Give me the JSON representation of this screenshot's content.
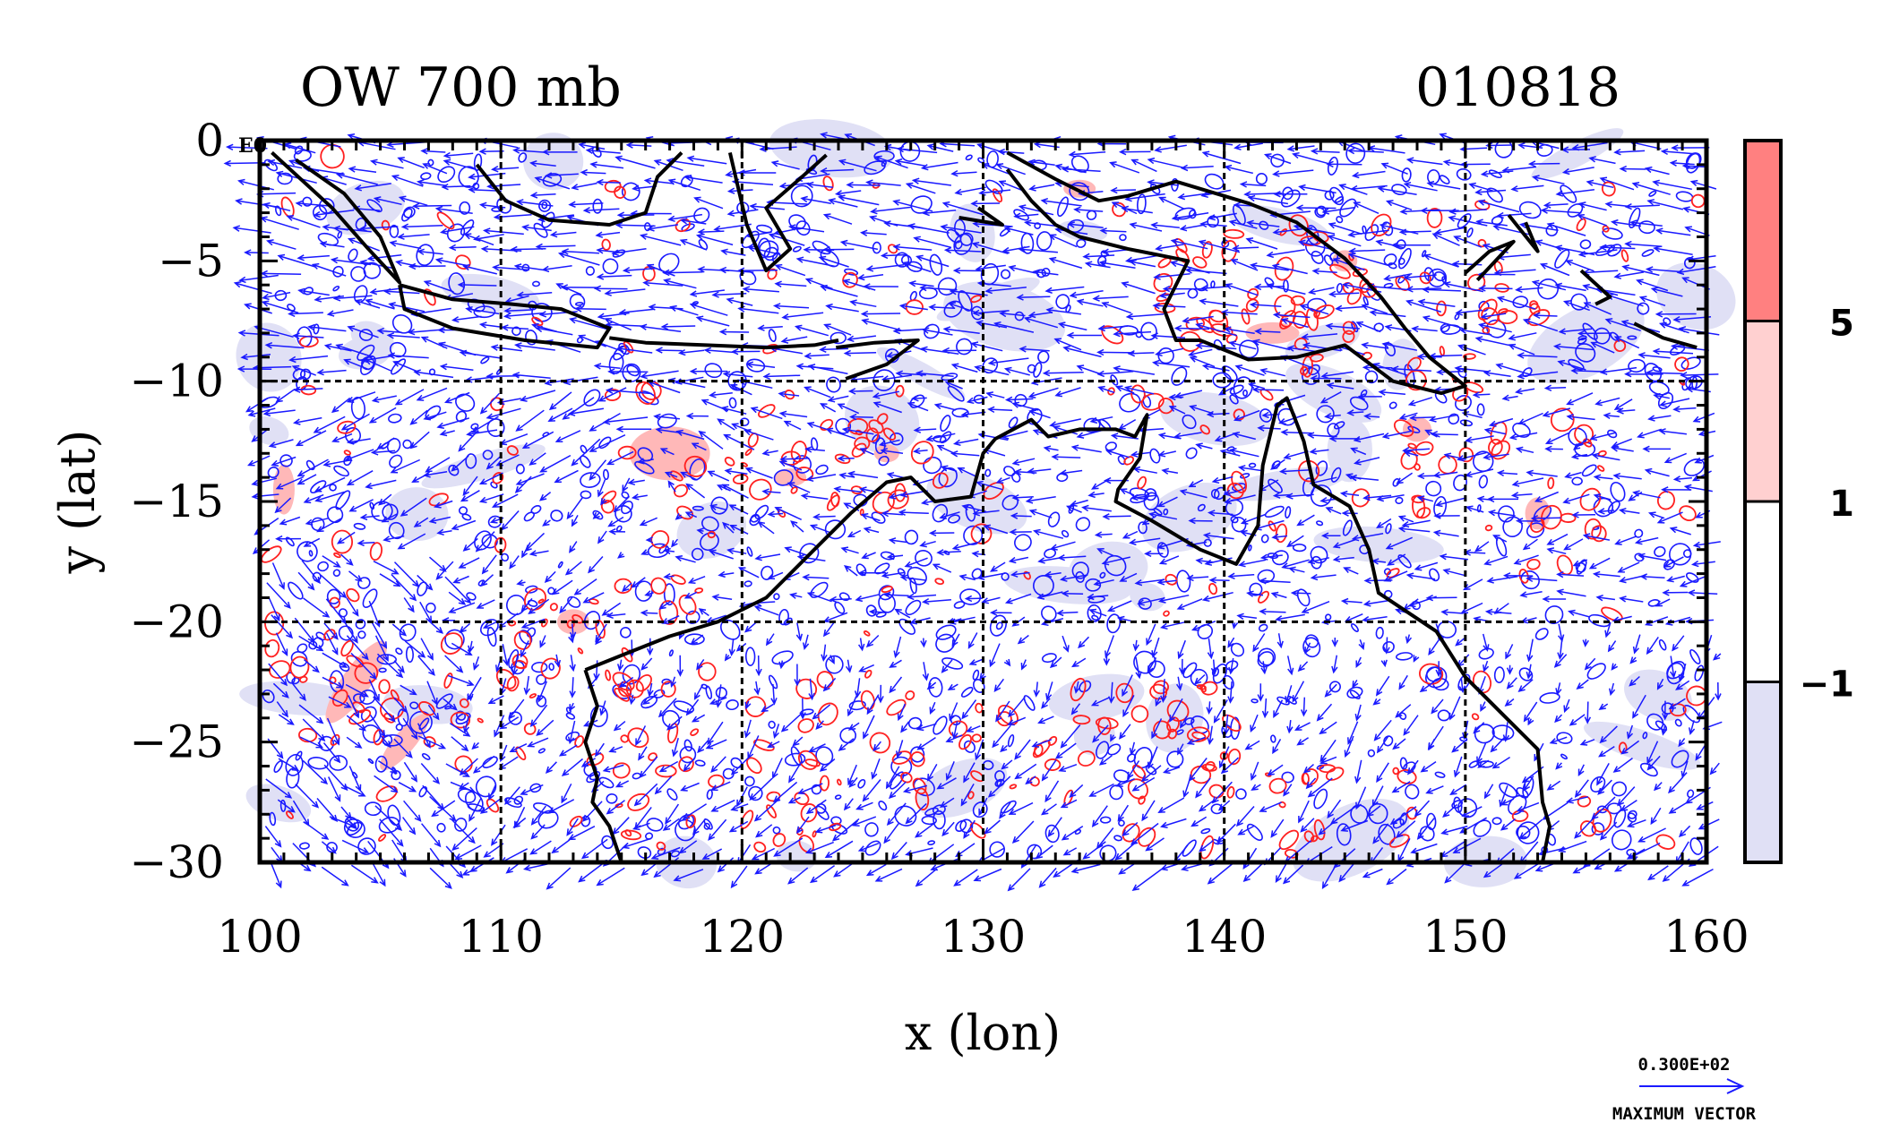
{
  "chart_data": {
    "type": "contour",
    "title": "OW 700 mb",
    "date_label": "010818",
    "xlabel": "x (lon)",
    "ylabel": "y (lat)",
    "xlim": [
      100,
      160
    ],
    "ylim": [
      -30,
      0
    ],
    "x_ticks": [
      100,
      110,
      120,
      130,
      140,
      150,
      160
    ],
    "y_ticks": [
      0,
      -5,
      -10,
      -15,
      -20,
      -25,
      -30
    ],
    "x_tick_labels": [
      "100",
      "110",
      "120",
      "130",
      "140",
      "150",
      "160"
    ],
    "y_tick_labels": [
      "0",
      "−5",
      "−10",
      "−15",
      "−20",
      "−25",
      "−30"
    ],
    "corner_label": "E0",
    "grid": true,
    "grid_x": [
      110,
      120,
      130,
      140,
      150
    ],
    "grid_y": [
      -10,
      -20
    ],
    "colorbar": {
      "position": "right",
      "levels": [
        {
          "label": "5",
          "color": "#ff8080"
        },
        {
          "label": "1",
          "color": "#ffd0d0"
        },
        {
          "label": "−1",
          "color": "#ffffff"
        },
        {
          "label": "",
          "color": "#e0e0f5"
        }
      ]
    },
    "vector_legend": {
      "value_label": "0.300E+02",
      "caption": "MAXIMUM VECTOR"
    },
    "colors": {
      "positive_contour": "#ff2020",
      "negative_contour": "#1a1aff",
      "coastline": "#000000",
      "vector": "#1a1aff"
    }
  }
}
